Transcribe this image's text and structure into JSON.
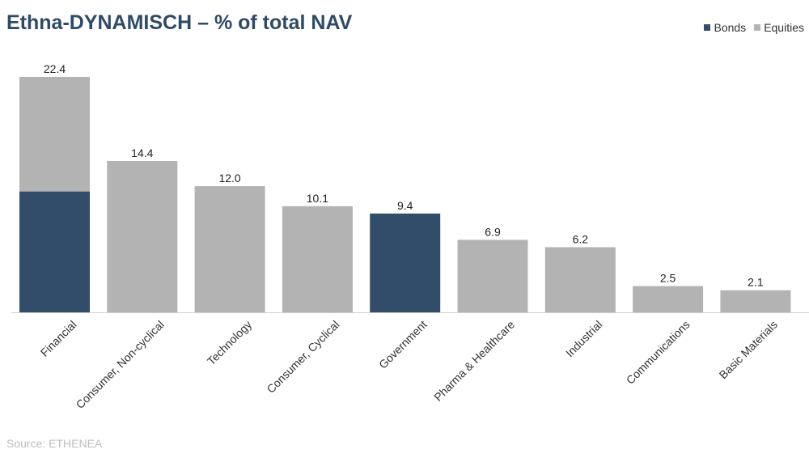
{
  "title": "Ethna-DYNAMISCH – % of total NAV",
  "source": "Source: ETHENEA",
  "legend": [
    {
      "label": "Bonds",
      "color": "#324d69"
    },
    {
      "label": "Equities",
      "color": "#b3b3b3"
    }
  ],
  "chart_data": {
    "type": "bar",
    "stacked": true,
    "title": "Ethna-DYNAMISCH – % of total NAV",
    "categories": [
      "Financial",
      "Consumer, Non-cyclical",
      "Technology",
      "Consumer, Cyclical",
      "Government",
      "Pharma & Healthcare",
      "Industrial",
      "Communications",
      "Basic Materials"
    ],
    "series": [
      {
        "name": "Bonds",
        "color": "#324d69",
        "values": [
          11.5,
          0,
          0,
          0,
          9.4,
          0,
          0,
          0,
          0
        ]
      },
      {
        "name": "Equities",
        "color": "#b3b3b3",
        "values": [
          10.9,
          14.4,
          12.0,
          10.1,
          0,
          6.9,
          6.2,
          2.5,
          2.1
        ]
      }
    ],
    "totals": [
      "22.4",
      "14.4",
      "12.0",
      "10.1",
      "9.4",
      "6.9",
      "6.2",
      "2.5",
      "2.1"
    ],
    "ylim": [
      0,
      22.4
    ],
    "grid": false,
    "legend_position": "top-right"
  }
}
